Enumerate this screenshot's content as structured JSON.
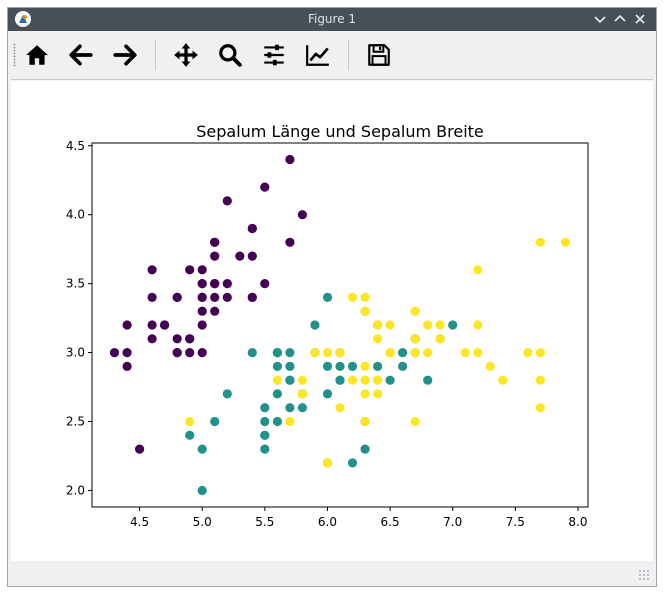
{
  "window": {
    "title": "Figure 1"
  },
  "toolbar": {
    "items": [
      {
        "name": "home-button",
        "icon": "home-icon"
      },
      {
        "name": "back-button",
        "icon": "arrow-left-icon"
      },
      {
        "name": "forward-button",
        "icon": "arrow-right-icon"
      },
      {
        "name": "pan-button",
        "icon": "move-icon"
      },
      {
        "name": "zoom-button",
        "icon": "magnifier-icon"
      },
      {
        "name": "subplots-button",
        "icon": "sliders-icon"
      },
      {
        "name": "axes-edit-button",
        "icon": "chart-line-icon"
      },
      {
        "name": "save-button",
        "icon": "floppy-icon"
      }
    ]
  },
  "chart_data": {
    "type": "scatter",
    "title": "Sepalum Länge und Sepalum Breite",
    "xlabel": "",
    "ylabel": "",
    "xlim": [
      4.12,
      8.08
    ],
    "ylim": [
      1.88,
      4.52
    ],
    "xticks": [
      "4.5",
      "5.0",
      "5.5",
      "6.0",
      "6.5",
      "7.0",
      "7.5",
      "8.0"
    ],
    "yticks": [
      "2.0",
      "2.5",
      "3.0",
      "3.5",
      "4.0",
      "4.5"
    ],
    "grid": false,
    "series": [
      {
        "color": "#440154",
        "points": [
          [
            5.1,
            3.5
          ],
          [
            4.9,
            3.0
          ],
          [
            4.7,
            3.2
          ],
          [
            4.6,
            3.1
          ],
          [
            5.0,
            3.6
          ],
          [
            5.4,
            3.9
          ],
          [
            4.6,
            3.4
          ],
          [
            5.0,
            3.4
          ],
          [
            4.4,
            2.9
          ],
          [
            4.9,
            3.1
          ],
          [
            5.4,
            3.7
          ],
          [
            4.8,
            3.4
          ],
          [
            4.8,
            3.0
          ],
          [
            4.3,
            3.0
          ],
          [
            5.8,
            4.0
          ],
          [
            5.7,
            4.4
          ],
          [
            5.4,
            3.9
          ],
          [
            5.1,
            3.5
          ],
          [
            5.7,
            3.8
          ],
          [
            5.1,
            3.8
          ],
          [
            5.4,
            3.4
          ],
          [
            5.1,
            3.7
          ],
          [
            4.6,
            3.6
          ],
          [
            5.1,
            3.3
          ],
          [
            4.8,
            3.4
          ],
          [
            5.0,
            3.0
          ],
          [
            5.0,
            3.4
          ],
          [
            5.2,
            3.5
          ],
          [
            5.2,
            3.4
          ],
          [
            4.7,
            3.2
          ],
          [
            4.8,
            3.1
          ],
          [
            5.4,
            3.4
          ],
          [
            5.2,
            4.1
          ],
          [
            5.5,
            4.2
          ],
          [
            4.9,
            3.1
          ],
          [
            5.0,
            3.2
          ],
          [
            5.5,
            3.5
          ],
          [
            4.9,
            3.6
          ],
          [
            4.4,
            3.0
          ],
          [
            5.1,
            3.4
          ],
          [
            5.0,
            3.5
          ],
          [
            4.5,
            2.3
          ],
          [
            4.4,
            3.2
          ],
          [
            5.0,
            3.5
          ],
          [
            5.1,
            3.8
          ],
          [
            4.8,
            3.0
          ],
          [
            5.1,
            3.8
          ],
          [
            4.6,
            3.2
          ],
          [
            5.3,
            3.7
          ],
          [
            5.0,
            3.3
          ]
        ]
      },
      {
        "color": "#21918c",
        "points": [
          [
            7.0,
            3.2
          ],
          [
            6.4,
            3.2
          ],
          [
            6.9,
            3.1
          ],
          [
            5.5,
            2.3
          ],
          [
            6.5,
            2.8
          ],
          [
            5.7,
            2.8
          ],
          [
            6.3,
            3.3
          ],
          [
            4.9,
            2.4
          ],
          [
            6.6,
            2.9
          ],
          [
            5.2,
            2.7
          ],
          [
            5.0,
            2.0
          ],
          [
            5.9,
            3.0
          ],
          [
            6.0,
            2.2
          ],
          [
            6.1,
            2.9
          ],
          [
            5.6,
            2.9
          ],
          [
            6.7,
            3.1
          ],
          [
            5.6,
            3.0
          ],
          [
            5.8,
            2.7
          ],
          [
            6.2,
            2.2
          ],
          [
            5.6,
            2.5
          ],
          [
            5.9,
            3.2
          ],
          [
            6.1,
            2.8
          ],
          [
            6.3,
            2.5
          ],
          [
            6.1,
            2.8
          ],
          [
            6.4,
            2.9
          ],
          [
            6.6,
            3.0
          ],
          [
            6.8,
            2.8
          ],
          [
            6.7,
            3.0
          ],
          [
            6.0,
            2.9
          ],
          [
            5.7,
            2.6
          ],
          [
            5.5,
            2.4
          ],
          [
            5.5,
            2.4
          ],
          [
            5.8,
            2.7
          ],
          [
            6.0,
            2.7
          ],
          [
            5.4,
            3.0
          ],
          [
            6.0,
            3.4
          ],
          [
            6.7,
            3.1
          ],
          [
            6.3,
            2.3
          ],
          [
            5.6,
            3.0
          ],
          [
            5.5,
            2.5
          ],
          [
            5.5,
            2.6
          ],
          [
            6.1,
            3.0
          ],
          [
            5.8,
            2.6
          ],
          [
            5.0,
            2.3
          ],
          [
            5.6,
            2.7
          ],
          [
            5.7,
            3.0
          ],
          [
            5.7,
            2.9
          ],
          [
            6.2,
            2.9
          ],
          [
            5.1,
            2.5
          ],
          [
            5.7,
            2.8
          ]
        ]
      },
      {
        "color": "#fde725",
        "points": [
          [
            6.3,
            3.3
          ],
          [
            5.8,
            2.7
          ],
          [
            7.1,
            3.0
          ],
          [
            6.3,
            2.9
          ],
          [
            6.5,
            3.0
          ],
          [
            7.6,
            3.0
          ],
          [
            4.9,
            2.5
          ],
          [
            7.3,
            2.9
          ],
          [
            6.7,
            2.5
          ],
          [
            7.2,
            3.6
          ],
          [
            6.5,
            3.2
          ],
          [
            6.4,
            2.7
          ],
          [
            6.8,
            3.0
          ],
          [
            5.7,
            2.5
          ],
          [
            5.8,
            2.8
          ],
          [
            6.4,
            3.2
          ],
          [
            6.5,
            3.0
          ],
          [
            7.7,
            3.8
          ],
          [
            7.7,
            2.6
          ],
          [
            6.0,
            2.2
          ],
          [
            6.9,
            3.2
          ],
          [
            5.6,
            2.8
          ],
          [
            7.7,
            2.8
          ],
          [
            6.3,
            2.7
          ],
          [
            6.7,
            3.3
          ],
          [
            7.2,
            3.2
          ],
          [
            6.2,
            2.8
          ],
          [
            6.1,
            3.0
          ],
          [
            6.4,
            2.8
          ],
          [
            7.2,
            3.0
          ],
          [
            7.4,
            2.8
          ],
          [
            7.9,
            3.8
          ],
          [
            6.4,
            2.8
          ],
          [
            6.3,
            2.8
          ],
          [
            6.1,
            2.6
          ],
          [
            7.7,
            3.0
          ],
          [
            6.3,
            3.4
          ],
          [
            6.4,
            3.1
          ],
          [
            6.0,
            3.0
          ],
          [
            6.9,
            3.1
          ],
          [
            6.7,
            3.1
          ],
          [
            6.9,
            3.1
          ],
          [
            5.8,
            2.7
          ],
          [
            6.8,
            3.2
          ],
          [
            6.7,
            3.3
          ],
          [
            6.7,
            3.0
          ],
          [
            6.3,
            2.5
          ],
          [
            6.5,
            3.0
          ],
          [
            6.2,
            3.4
          ],
          [
            5.9,
            3.0
          ]
        ]
      }
    ]
  }
}
